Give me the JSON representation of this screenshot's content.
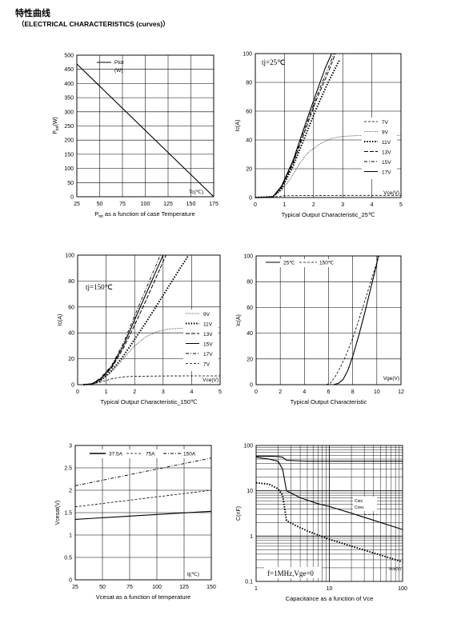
{
  "header": {
    "title_zh": "特性曲线",
    "title_en": "（ELECTRICAL CHARACTERISTICS (curves)）"
  },
  "chart_data": [
    {
      "type": "line",
      "id": "c1",
      "xlabel_main": "P",
      "xlabel_sub": "tot",
      "xlabel_rest": " as a function of case Temperature",
      "ylabel_main": "P",
      "ylabel_sub": "tot",
      "ylabel_rest": "(W)",
      "x_ticks": [
        25,
        50,
        75,
        100,
        125,
        150,
        175
      ],
      "y_ticks": [
        0,
        50,
        100,
        150,
        200,
        250,
        300,
        350,
        400,
        450,
        500
      ],
      "xlim": [
        25,
        175
      ],
      "ylim": [
        0,
        500
      ],
      "grid": true,
      "annotation": "Tc(℃)",
      "series": [
        {
          "name": "Ptot",
          "name2": "(W)",
          "x": [
            25,
            175
          ],
          "y": [
            469,
            0
          ],
          "style": "solid"
        }
      ]
    },
    {
      "type": "line",
      "id": "c2",
      "xlabel": "Typical Output Characteristic_25℃",
      "ylabel": "Ic(A)",
      "x_ticks": [
        0,
        1,
        2,
        3,
        4,
        5
      ],
      "y_ticks": [
        0,
        20,
        40,
        60,
        80,
        100
      ],
      "xlim": [
        0,
        5
      ],
      "ylim": [
        0,
        100
      ],
      "grid": true,
      "annotation": "tj=25℃",
      "axis_note": "Vce(V)",
      "series": [
        {
          "name": "7V",
          "style": "dashed",
          "x": [
            0,
            0.6,
            1,
            2,
            3,
            4,
            5
          ],
          "y": [
            0,
            0.4,
            1.2,
            1.4,
            1.5,
            1.5,
            1.5
          ]
        },
        {
          "name": "9V",
          "style": "dotted-fine",
          "x": [
            0,
            0.6,
            0.9,
            1.2,
            1.5,
            1.8,
            2.2,
            2.6,
            3.0,
            3.5,
            4,
            5
          ],
          "y": [
            0,
            0.5,
            5,
            13,
            23,
            31,
            37,
            41,
            42.5,
            43,
            43,
            43
          ]
        },
        {
          "name": "11V",
          "style": "dotted-bold",
          "x": [
            0,
            0.6,
            0.9,
            1.3,
            1.7,
            2.1,
            2.5,
            2.9
          ],
          "y": [
            0,
            0.5,
            6,
            22,
            42,
            62,
            80,
            96
          ]
        },
        {
          "name": "13V",
          "style": "dash-long",
          "x": [
            0,
            0.6,
            0.9,
            1.3,
            1.7,
            2.1,
            2.5,
            2.75
          ],
          "y": [
            0,
            0.5,
            7,
            24,
            46,
            68,
            87,
            100
          ]
        },
        {
          "name": "15V",
          "style": "dash-dot",
          "x": [
            0,
            0.6,
            0.9,
            1.3,
            1.7,
            2.1,
            2.5,
            2.7
          ],
          "y": [
            0,
            0.5,
            7.5,
            25,
            48,
            70,
            90,
            100
          ]
        },
        {
          "name": "17V",
          "style": "solid",
          "x": [
            0,
            0.6,
            0.9,
            1.3,
            1.7,
            2.1,
            2.4,
            2.62
          ],
          "y": [
            0,
            0.5,
            8,
            26,
            50,
            73,
            90,
            100
          ]
        }
      ]
    },
    {
      "type": "line",
      "id": "c3",
      "xlabel": "Typical Output Characteristic_150℃",
      "ylabel": "Ic(A)",
      "x_ticks": [
        0,
        1,
        2,
        3,
        4,
        5
      ],
      "y_ticks": [
        0,
        20,
        40,
        60,
        80,
        100
      ],
      "xlim": [
        0,
        5
      ],
      "ylim": [
        0,
        100
      ],
      "grid": true,
      "annotation": "tj=150℃",
      "axis_note": "Vce(V)",
      "series": [
        {
          "name": "9V",
          "style": "dotted-fine",
          "x": [
            0.2,
            0.5,
            0.8,
            1.2,
            1.6,
            2.0,
            2.4,
            2.8,
            3.2,
            4,
            5
          ],
          "y": [
            0,
            0.5,
            3,
            10,
            20,
            30,
            37,
            41,
            43,
            44,
            44
          ]
        },
        {
          "name": "11V",
          "style": "dotted-bold",
          "x": [
            0.2,
            0.5,
            0.8,
            1.2,
            1.6,
            2.0,
            2.4,
            2.8,
            3.2,
            3.6,
            3.9
          ],
          "y": [
            0,
            0.5,
            3,
            11,
            22,
            35,
            48,
            62,
            76,
            90,
            100
          ]
        },
        {
          "name": "13V",
          "style": "dash-long",
          "x": [
            0.2,
            0.5,
            0.8,
            1.2,
            1.6,
            2.0,
            2.4,
            2.8,
            3.1
          ],
          "y": [
            0,
            0.6,
            4,
            13,
            28,
            46,
            65,
            85,
            100
          ]
        },
        {
          "name": "15V",
          "style": "solid",
          "x": [
            0.2,
            0.5,
            0.8,
            1.2,
            1.6,
            2.0,
            2.4,
            2.8,
            3.0
          ],
          "y": [
            0,
            0.6,
            4.5,
            14,
            30,
            50,
            70,
            90,
            100
          ]
        },
        {
          "name": "17V",
          "style": "dash-dot",
          "x": [
            0.2,
            0.5,
            0.8,
            1.2,
            1.6,
            2.0,
            2.4,
            2.75,
            2.9
          ],
          "y": [
            0,
            0.7,
            5,
            15,
            32,
            53,
            74,
            92,
            100
          ]
        },
        {
          "name": "7V",
          "style": "dashed",
          "x": [
            0.2,
            0.5,
            0.8,
            1.2,
            1.6,
            2.0,
            3,
            4,
            5
          ],
          "y": [
            0,
            0.5,
            2,
            4.5,
            6,
            6.5,
            6.7,
            6.8,
            6.8
          ]
        }
      ]
    },
    {
      "type": "line",
      "id": "c4",
      "xlabel": "Typical Output Characteristic",
      "ylabel": "Ic(A)",
      "x_ticks": [
        0,
        2,
        4,
        6,
        8,
        10,
        12
      ],
      "y_ticks": [
        0,
        20,
        40,
        60,
        80,
        100
      ],
      "xlim": [
        0,
        12
      ],
      "ylim": [
        0,
        100
      ],
      "grid": true,
      "axis_note": "Vge(V)",
      "series": [
        {
          "name": "25℃",
          "style": "solid",
          "x": [
            6.4,
            6.8,
            7.2,
            7.6,
            8.0,
            8.5,
            9.0,
            9.5,
            10.0,
            10.1
          ],
          "y": [
            0,
            1,
            4,
            11,
            22,
            38,
            56,
            75,
            94,
            100
          ]
        },
        {
          "name": "150℃",
          "style": "dashed",
          "x": [
            5.8,
            6.2,
            6.6,
            7.0,
            7.5,
            8.0,
            8.5,
            9.0,
            9.5,
            10.0,
            10.2
          ],
          "y": [
            0,
            1.5,
            7,
            14,
            24,
            36,
            50,
            65,
            80,
            95,
            100
          ]
        }
      ]
    },
    {
      "type": "line",
      "id": "c5",
      "xlabel": "Vcesat as a function of temperature",
      "ylabel": "Vcesat(V)",
      "x_ticks": [
        25,
        50,
        75,
        100,
        125,
        150
      ],
      "y_ticks": [
        0,
        0.5,
        1,
        1.5,
        2,
        2.5,
        3
      ],
      "xlim": [
        25,
        150
      ],
      "ylim": [
        0,
        3
      ],
      "grid": true,
      "annotation": "tj(℃)",
      "series": [
        {
          "name": "37.5A",
          "style": "solid",
          "x": [
            25,
            150
          ],
          "y": [
            1.35,
            1.53
          ]
        },
        {
          "name": "75A",
          "style": "dashed",
          "x": [
            25,
            150
          ],
          "y": [
            1.63,
            2.0
          ]
        },
        {
          "name": "150A",
          "style": "dash-dot",
          "x": [
            25,
            150
          ],
          "y": [
            2.1,
            2.72
          ]
        }
      ]
    },
    {
      "type": "line",
      "id": "c6",
      "xlabel": "Capacitance as a function of Vce",
      "ylabel": "C(nF)",
      "x_ticks": [
        1,
        10,
        100
      ],
      "y_ticks": [
        0.1,
        1,
        10,
        100
      ],
      "xlim": [
        1,
        100
      ],
      "ylim": [
        0.1,
        100
      ],
      "log_x": true,
      "log_y": true,
      "grid": true,
      "annotation": "f=1MHz,Vge=0",
      "axis_note": "Vce(V)",
      "series": [
        {
          "name": "Cies",
          "style": "solid",
          "x": [
            1,
            1.5,
            2,
            2.3,
            2.6,
            5,
            10,
            30,
            100
          ],
          "y": [
            58,
            58,
            57,
            55,
            47,
            45,
            45,
            45,
            45
          ]
        },
        {
          "name": "Coes",
          "style": "solid",
          "x": [
            1,
            1.5,
            2,
            2.3,
            2.6,
            4,
            7,
            10,
            20,
            50,
            100
          ],
          "y": [
            55,
            50,
            45,
            30,
            10,
            7,
            5.2,
            4.5,
            3.2,
            2.0,
            1.4
          ]
        },
        {
          "name": "Cres",
          "style": "dotted-bold",
          "x": [
            1,
            1.5,
            2,
            2.3,
            2.6,
            3.5,
            5,
            10,
            20,
            50,
            100
          ],
          "y": [
            15,
            14,
            11,
            8,
            2.2,
            1.7,
            1.3,
            0.85,
            0.6,
            0.38,
            0.27
          ]
        },
        {
          "name": "Cies",
          "style": "dashed",
          "x": [
            30,
            38,
            45
          ],
          "y": [
            3.0,
            3.0,
            3.0
          ]
        }
      ]
    }
  ]
}
